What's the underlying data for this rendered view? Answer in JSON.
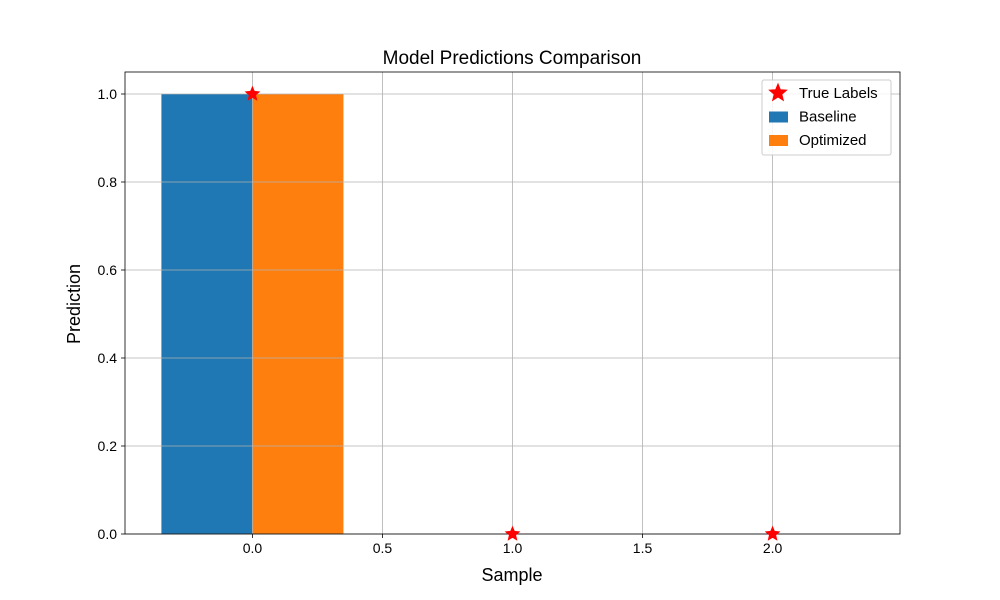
{
  "chart_data": {
    "type": "bar",
    "title": "Model Predictions Comparison",
    "xlabel": "Sample",
    "ylabel": "Prediction",
    "xlim": [
      -0.49,
      2.49
    ],
    "ylim": [
      0.0,
      1.05
    ],
    "x_ticks": [
      0.0,
      0.5,
      1.0,
      1.5,
      2.0
    ],
    "x_tick_labels": [
      "0.0",
      "0.5",
      "1.0",
      "1.5",
      "2.0"
    ],
    "y_ticks": [
      0.0,
      0.2,
      0.4,
      0.6,
      0.8,
      1.0
    ],
    "y_tick_labels": [
      "0.0",
      "0.2",
      "0.4",
      "0.6",
      "0.8",
      "1.0"
    ],
    "grid": true,
    "legend_position": "top-right",
    "bar_width": 0.35,
    "series": [
      {
        "name": "True Labels",
        "kind": "scatter",
        "marker": "star",
        "color": "#ff0000",
        "x": [
          0,
          1,
          2
        ],
        "values": [
          1,
          0,
          0
        ]
      },
      {
        "name": "Baseline",
        "kind": "bar",
        "color": "#1f77b4",
        "x": [
          0,
          1,
          2
        ],
        "offset": -0.175,
        "values": [
          1,
          0,
          0
        ]
      },
      {
        "name": "Optimized",
        "kind": "bar",
        "color": "#ff7f0e",
        "x": [
          0,
          1,
          2
        ],
        "offset": 0.175,
        "values": [
          1,
          0,
          0
        ]
      }
    ]
  }
}
